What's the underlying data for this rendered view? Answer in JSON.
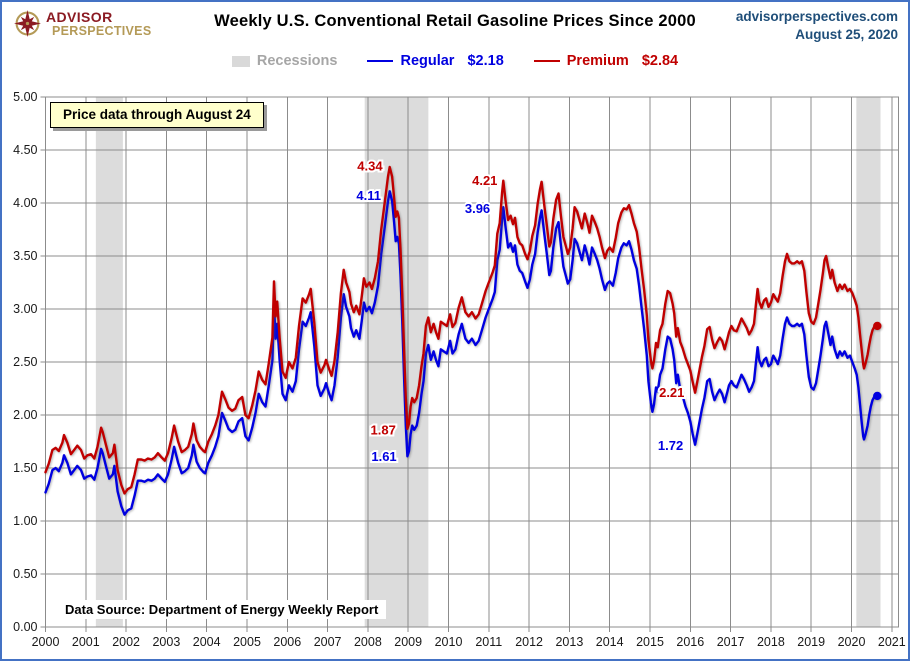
{
  "header": {
    "logo_line1": "ADVISOR",
    "logo_line2": "PERSPECTIVES",
    "title": "Weekly U.S. Conventional  Retail Gasoline Prices Since 2000",
    "site": "advisorperspectives.com",
    "date": "August 25, 2020"
  },
  "legend": {
    "recessions_label": "Recessions",
    "regular_label": "Regular",
    "regular_value": "$2.18",
    "premium_label": "Premium",
    "premium_value": "$2.84"
  },
  "callout": {
    "text": "Price data through August 24"
  },
  "source_note": "Data Source: Department of Energy Weekly Report",
  "colors": {
    "frame_border": "#4472C4",
    "regular_blue": "#0000E0",
    "premium_red": "#C00000",
    "recession_band": "#DCDCDC",
    "grid_gray": "#8C8C8C",
    "legend_gray": "#A6A6A6",
    "date_blue": "#1F4E79",
    "logo_red": "#8B1A22",
    "logo_gold": "#B49A57",
    "callout_bg": "#FFFFCC"
  },
  "chart_data": {
    "type": "line",
    "title": "Weekly U.S. Conventional Retail Gasoline Prices Since 2000",
    "xlabel": "",
    "ylabel": "",
    "xlim": [
      2000,
      2021.15
    ],
    "ylim": [
      0,
      5
    ],
    "grid": true,
    "legend_position": "top",
    "x_ticks": [
      2000,
      2001,
      2002,
      2003,
      2004,
      2005,
      2006,
      2007,
      2008,
      2009,
      2010,
      2011,
      2012,
      2013,
      2014,
      2015,
      2016,
      2017,
      2018,
      2019,
      2020,
      2021
    ],
    "y_ticks": [
      "0.00",
      "0.50",
      "1.00",
      "1.50",
      "2.00",
      "2.50",
      "3.00",
      "3.50",
      "4.00",
      "4.50",
      "5.00"
    ],
    "recessions": [
      [
        2001.25,
        2001.92
      ],
      [
        2007.92,
        2009.5
      ],
      [
        2020.12,
        2020.72
      ]
    ],
    "x": [
      2000.0,
      2000.08,
      2000.17,
      2000.25,
      2000.33,
      2000.42,
      2000.46,
      2000.54,
      2000.63,
      2000.71,
      2000.79,
      2000.88,
      2000.96,
      2001.04,
      2001.13,
      2001.21,
      2001.29,
      2001.38,
      2001.42,
      2001.5,
      2001.58,
      2001.67,
      2001.71,
      2001.79,
      2001.88,
      2001.96,
      2002.04,
      2002.13,
      2002.21,
      2002.29,
      2002.38,
      2002.46,
      2002.54,
      2002.63,
      2002.71,
      2002.79,
      2002.88,
      2002.96,
      2003.04,
      2003.13,
      2003.19,
      2003.29,
      2003.38,
      2003.46,
      2003.54,
      2003.63,
      2003.67,
      2003.75,
      2003.83,
      2003.92,
      2003.96,
      2004.04,
      2004.13,
      2004.21,
      2004.29,
      2004.38,
      2004.46,
      2004.54,
      2004.63,
      2004.71,
      2004.79,
      2004.88,
      2004.96,
      2005.04,
      2005.13,
      2005.21,
      2005.29,
      2005.38,
      2005.46,
      2005.54,
      2005.63,
      2005.67,
      2005.71,
      2005.75,
      2005.81,
      2005.88,
      2005.96,
      2006.04,
      2006.13,
      2006.21,
      2006.29,
      2006.38,
      2006.46,
      2006.54,
      2006.58,
      2006.67,
      2006.75,
      2006.83,
      2006.92,
      2006.96,
      2007.04,
      2007.1,
      2007.17,
      2007.25,
      2007.33,
      2007.4,
      2007.46,
      2007.54,
      2007.58,
      2007.65,
      2007.71,
      2007.79,
      2007.85,
      2007.9,
      2007.96,
      2008.04,
      2008.1,
      2008.17,
      2008.25,
      2008.33,
      2008.42,
      2008.5,
      2008.54,
      2008.6,
      2008.65,
      2008.69,
      2008.73,
      2008.77,
      2008.81,
      2008.85,
      2008.9,
      2008.94,
      2008.98,
      2009.02,
      2009.06,
      2009.1,
      2009.15,
      2009.21,
      2009.27,
      2009.33,
      2009.38,
      2009.44,
      2009.5,
      2009.56,
      2009.63,
      2009.69,
      2009.75,
      2009.81,
      2009.88,
      2009.96,
      2010.04,
      2010.1,
      2010.17,
      2010.25,
      2010.33,
      2010.42,
      2010.5,
      2010.58,
      2010.67,
      2010.75,
      2010.83,
      2010.92,
      2010.98,
      2011.04,
      2011.1,
      2011.15,
      2011.21,
      2011.27,
      2011.33,
      2011.36,
      2011.42,
      2011.48,
      2011.54,
      2011.6,
      2011.65,
      2011.71,
      2011.77,
      2011.83,
      2011.9,
      2011.96,
      2012.02,
      2012.08,
      2012.15,
      2012.21,
      2012.27,
      2012.31,
      2012.38,
      2012.44,
      2012.5,
      2012.54,
      2012.6,
      2012.67,
      2012.73,
      2012.79,
      2012.85,
      2012.92,
      2012.96,
      2013.02,
      2013.08,
      2013.13,
      2013.19,
      2013.25,
      2013.31,
      2013.38,
      2013.44,
      2013.5,
      2013.56,
      2013.63,
      2013.69,
      2013.75,
      2013.81,
      2013.88,
      2013.94,
      2014.0,
      2014.08,
      2014.15,
      2014.21,
      2014.29,
      2014.35,
      2014.42,
      2014.48,
      2014.54,
      2014.6,
      2014.67,
      2014.73,
      2014.79,
      2014.85,
      2014.92,
      2014.96,
      2015.02,
      2015.06,
      2015.1,
      2015.15,
      2015.19,
      2015.25,
      2015.31,
      2015.38,
      2015.44,
      2015.5,
      2015.56,
      2015.6,
      2015.65,
      2015.69,
      2015.75,
      2015.81,
      2015.88,
      2015.94,
      2016.0,
      2016.06,
      2016.12,
      2016.17,
      2016.23,
      2016.29,
      2016.35,
      2016.42,
      2016.48,
      2016.54,
      2016.6,
      2016.67,
      2016.73,
      2016.79,
      2016.85,
      2016.92,
      2016.96,
      2017.02,
      2017.08,
      2017.15,
      2017.21,
      2017.27,
      2017.33,
      2017.4,
      2017.46,
      2017.52,
      2017.58,
      2017.63,
      2017.67,
      2017.71,
      2017.77,
      2017.83,
      2017.88,
      2017.94,
      2018.0,
      2018.06,
      2018.12,
      2018.17,
      2018.23,
      2018.29,
      2018.35,
      2018.4,
      2018.46,
      2018.52,
      2018.58,
      2018.65,
      2018.71,
      2018.77,
      2018.83,
      2018.88,
      2018.94,
      2019.0,
      2019.06,
      2019.12,
      2019.17,
      2019.23,
      2019.29,
      2019.33,
      2019.37,
      2019.42,
      2019.48,
      2019.52,
      2019.58,
      2019.65,
      2019.71,
      2019.77,
      2019.83,
      2019.9,
      2019.96,
      2020.02,
      2020.08,
      2020.13,
      2020.17,
      2020.21,
      2020.25,
      2020.29,
      2020.31,
      2020.35,
      2020.4,
      2020.44,
      2020.48,
      2020.52,
      2020.56,
      2020.6,
      2020.64
    ],
    "series": [
      {
        "name": "Regular",
        "final_value": 2.18,
        "color": "#0000E0",
        "values": [
          1.27,
          1.35,
          1.48,
          1.5,
          1.47,
          1.55,
          1.62,
          1.55,
          1.44,
          1.48,
          1.52,
          1.48,
          1.4,
          1.42,
          1.43,
          1.39,
          1.5,
          1.68,
          1.64,
          1.52,
          1.4,
          1.44,
          1.52,
          1.28,
          1.14,
          1.06,
          1.1,
          1.12,
          1.24,
          1.38,
          1.38,
          1.37,
          1.39,
          1.38,
          1.4,
          1.44,
          1.4,
          1.37,
          1.44,
          1.58,
          1.7,
          1.55,
          1.45,
          1.47,
          1.5,
          1.62,
          1.72,
          1.56,
          1.5,
          1.46,
          1.45,
          1.55,
          1.62,
          1.7,
          1.8,
          2.02,
          1.95,
          1.87,
          1.84,
          1.86,
          1.94,
          1.97,
          1.8,
          1.76,
          1.88,
          2.02,
          2.2,
          2.12,
          2.08,
          2.28,
          2.52,
          3.05,
          2.72,
          2.86,
          2.52,
          2.2,
          2.14,
          2.28,
          2.22,
          2.32,
          2.62,
          2.88,
          2.84,
          2.92,
          2.97,
          2.65,
          2.28,
          2.18,
          2.25,
          2.3,
          2.2,
          2.14,
          2.28,
          2.55,
          2.92,
          3.14,
          3.02,
          2.93,
          2.82,
          2.74,
          2.8,
          2.72,
          2.9,
          3.06,
          2.98,
          3.02,
          2.96,
          3.06,
          3.22,
          3.52,
          3.78,
          4.02,
          4.11,
          4.02,
          3.82,
          3.64,
          3.68,
          3.62,
          3.32,
          2.9,
          2.32,
          1.9,
          1.61,
          1.66,
          1.82,
          1.9,
          1.86,
          1.9,
          2.02,
          2.2,
          2.32,
          2.58,
          2.66,
          2.52,
          2.6,
          2.52,
          2.46,
          2.62,
          2.6,
          2.58,
          2.7,
          2.58,
          2.62,
          2.76,
          2.86,
          2.72,
          2.68,
          2.72,
          2.66,
          2.7,
          2.8,
          2.92,
          2.98,
          3.04,
          3.1,
          3.16,
          3.46,
          3.56,
          3.85,
          3.96,
          3.76,
          3.58,
          3.62,
          3.54,
          3.6,
          3.42,
          3.36,
          3.34,
          3.26,
          3.2,
          3.28,
          3.42,
          3.52,
          3.72,
          3.86,
          3.93,
          3.7,
          3.52,
          3.32,
          3.36,
          3.58,
          3.76,
          3.82,
          3.6,
          3.4,
          3.3,
          3.24,
          3.28,
          3.46,
          3.66,
          3.62,
          3.54,
          3.46,
          3.6,
          3.52,
          3.42,
          3.58,
          3.52,
          3.46,
          3.38,
          3.28,
          3.18,
          3.24,
          3.26,
          3.22,
          3.34,
          3.48,
          3.58,
          3.62,
          3.6,
          3.64,
          3.56,
          3.46,
          3.38,
          3.22,
          3.02,
          2.82,
          2.56,
          2.32,
          2.12,
          2.03,
          2.1,
          2.26,
          2.22,
          2.38,
          2.44,
          2.62,
          2.74,
          2.72,
          2.62,
          2.52,
          2.3,
          2.38,
          2.24,
          2.18,
          2.08,
          2.02,
          1.94,
          1.82,
          1.72,
          1.82,
          1.94,
          2.06,
          2.16,
          2.32,
          2.34,
          2.22,
          2.14,
          2.2,
          2.24,
          2.2,
          2.12,
          2.22,
          2.28,
          2.32,
          2.28,
          2.26,
          2.32,
          2.38,
          2.34,
          2.28,
          2.22,
          2.26,
          2.32,
          2.5,
          2.64,
          2.52,
          2.46,
          2.52,
          2.54,
          2.46,
          2.48,
          2.56,
          2.52,
          2.48,
          2.56,
          2.72,
          2.86,
          2.92,
          2.86,
          2.84,
          2.84,
          2.86,
          2.84,
          2.86,
          2.76,
          2.56,
          2.36,
          2.26,
          2.24,
          2.3,
          2.42,
          2.56,
          2.72,
          2.84,
          2.88,
          2.78,
          2.66,
          2.74,
          2.62,
          2.54,
          2.6,
          2.56,
          2.6,
          2.54,
          2.56,
          2.5,
          2.44,
          2.38,
          2.26,
          2.1,
          1.94,
          1.8,
          1.77,
          1.82,
          1.9,
          2.0,
          2.08,
          2.14,
          2.17,
          2.17,
          2.18
        ]
      },
      {
        "name": "Premium",
        "final_value": 2.84,
        "color": "#C00000",
        "values": [
          1.46,
          1.54,
          1.67,
          1.69,
          1.66,
          1.74,
          1.81,
          1.74,
          1.63,
          1.67,
          1.71,
          1.67,
          1.59,
          1.62,
          1.63,
          1.59,
          1.7,
          1.88,
          1.84,
          1.72,
          1.6,
          1.64,
          1.72,
          1.48,
          1.34,
          1.26,
          1.3,
          1.32,
          1.44,
          1.58,
          1.58,
          1.57,
          1.59,
          1.58,
          1.6,
          1.64,
          1.6,
          1.57,
          1.64,
          1.78,
          1.9,
          1.75,
          1.65,
          1.67,
          1.7,
          1.82,
          1.92,
          1.76,
          1.7,
          1.66,
          1.65,
          1.75,
          1.82,
          1.9,
          2.0,
          2.22,
          2.15,
          2.07,
          2.04,
          2.06,
          2.14,
          2.17,
          2.0,
          1.97,
          2.09,
          2.23,
          2.41,
          2.33,
          2.29,
          2.49,
          2.73,
          3.26,
          2.93,
          3.07,
          2.73,
          2.41,
          2.35,
          2.5,
          2.44,
          2.54,
          2.84,
          3.1,
          3.06,
          3.14,
          3.19,
          2.87,
          2.5,
          2.4,
          2.47,
          2.52,
          2.43,
          2.37,
          2.51,
          2.78,
          3.15,
          3.37,
          3.25,
          3.16,
          3.05,
          2.97,
          3.03,
          2.95,
          3.13,
          3.29,
          3.21,
          3.25,
          3.19,
          3.29,
          3.45,
          3.75,
          4.01,
          4.25,
          4.34,
          4.25,
          4.05,
          3.87,
          3.92,
          3.86,
          3.56,
          3.15,
          2.58,
          2.16,
          1.87,
          1.92,
          2.08,
          2.16,
          2.12,
          2.16,
          2.28,
          2.46,
          2.58,
          2.84,
          2.92,
          2.78,
          2.86,
          2.78,
          2.72,
          2.88,
          2.86,
          2.84,
          2.95,
          2.83,
          2.87,
          3.01,
          3.11,
          2.97,
          2.93,
          2.97,
          2.91,
          2.95,
          3.05,
          3.17,
          3.23,
          3.29,
          3.35,
          3.41,
          3.71,
          3.81,
          4.1,
          4.21,
          4.01,
          3.84,
          3.88,
          3.8,
          3.86,
          3.68,
          3.62,
          3.6,
          3.52,
          3.47,
          3.55,
          3.69,
          3.79,
          3.99,
          4.13,
          4.2,
          3.97,
          3.79,
          3.59,
          3.63,
          3.85,
          4.03,
          4.09,
          3.88,
          3.68,
          3.58,
          3.52,
          3.58,
          3.76,
          3.96,
          3.92,
          3.84,
          3.76,
          3.9,
          3.82,
          3.72,
          3.88,
          3.82,
          3.76,
          3.68,
          3.58,
          3.48,
          3.55,
          3.58,
          3.54,
          3.67,
          3.81,
          3.91,
          3.95,
          3.94,
          3.98,
          3.9,
          3.81,
          3.73,
          3.58,
          3.38,
          3.19,
          2.94,
          2.71,
          2.52,
          2.44,
          2.51,
          2.68,
          2.64,
          2.8,
          2.86,
          3.05,
          3.17,
          3.15,
          3.05,
          2.96,
          2.74,
          2.82,
          2.69,
          2.63,
          2.54,
          2.48,
          2.42,
          2.31,
          2.21,
          2.31,
          2.43,
          2.55,
          2.65,
          2.81,
          2.83,
          2.71,
          2.63,
          2.69,
          2.73,
          2.7,
          2.62,
          2.72,
          2.78,
          2.84,
          2.8,
          2.79,
          2.85,
          2.91,
          2.87,
          2.82,
          2.76,
          2.8,
          2.86,
          3.05,
          3.19,
          3.07,
          3.01,
          3.08,
          3.1,
          3.02,
          3.06,
          3.14,
          3.1,
          3.07,
          3.15,
          3.31,
          3.45,
          3.52,
          3.45,
          3.43,
          3.43,
          3.45,
          3.43,
          3.45,
          3.36,
          3.16,
          2.96,
          2.88,
          2.86,
          2.92,
          3.04,
          3.18,
          3.34,
          3.46,
          3.5,
          3.4,
          3.29,
          3.37,
          3.25,
          3.17,
          3.23,
          3.19,
          3.23,
          3.17,
          3.19,
          3.15,
          3.09,
          3.03,
          2.92,
          2.76,
          2.62,
          2.48,
          2.44,
          2.49,
          2.57,
          2.66,
          2.74,
          2.8,
          2.83,
          2.83,
          2.84
        ]
      }
    ],
    "annotations": [
      {
        "text": "4.34",
        "color": "#C00000",
        "x": 2008.05,
        "y": 4.35
      },
      {
        "text": "4.11",
        "color": "#0000E0",
        "x": 2008.02,
        "y": 4.07
      },
      {
        "text": "4.21",
        "color": "#C00000",
        "x": 2010.9,
        "y": 4.21
      },
      {
        "text": "3.96",
        "color": "#0000E0",
        "x": 2010.72,
        "y": 3.95
      },
      {
        "text": "1.87",
        "color": "#C00000",
        "x": 2008.38,
        "y": 1.86
      },
      {
        "text": "1.61",
        "color": "#0000E0",
        "x": 2008.4,
        "y": 1.61
      },
      {
        "text": "2.21",
        "color": "#C00000",
        "x": 2015.54,
        "y": 2.21
      },
      {
        "text": "1.72",
        "color": "#0000E0",
        "x": 2015.51,
        "y": 1.71
      }
    ]
  }
}
